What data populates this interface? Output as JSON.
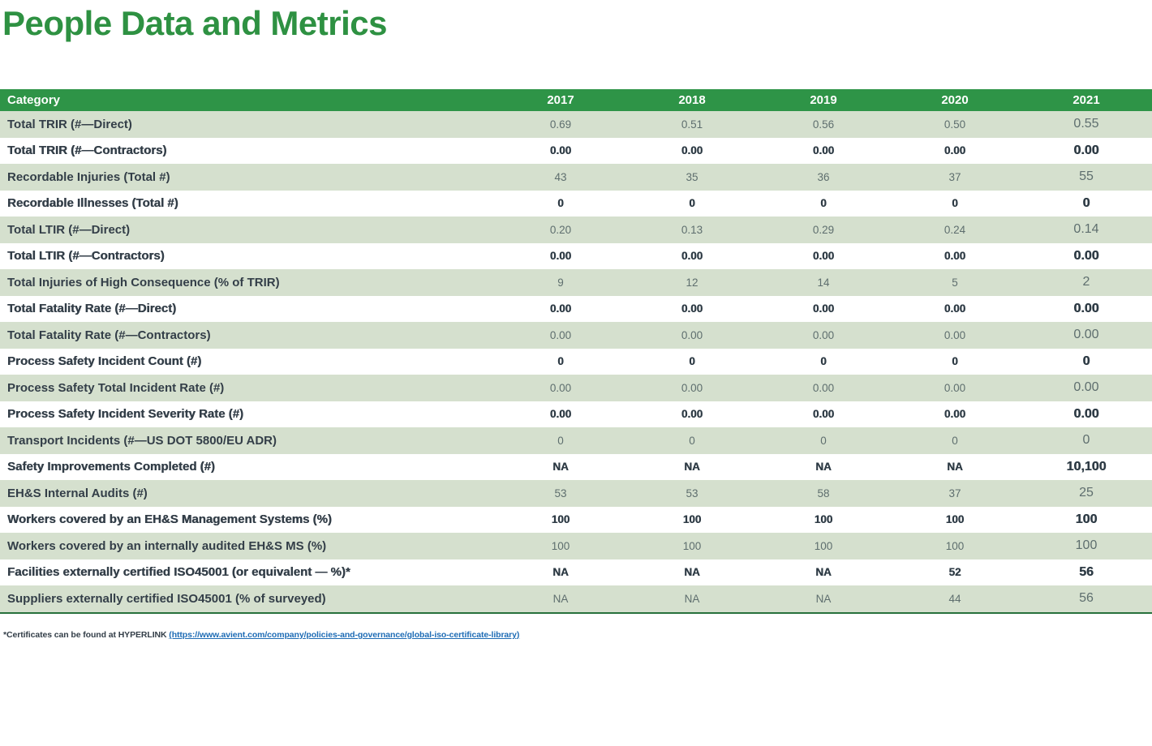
{
  "page": {
    "title": "People Data and Metrics"
  },
  "colors": {
    "brand_green_title": "#2e9142",
    "header_green": "#2e9447",
    "row_green": "#d5e0ce",
    "row_white": "#ffffff",
    "category_text": "#333e48",
    "value_text_white_rows": "#2e3b45",
    "value_text_green_rows": "#5e6e6e",
    "link_blue": "#1e6cb5",
    "table_bottom_border": "#27713c"
  },
  "table": {
    "columns": [
      "Category",
      "2017",
      "2018",
      "2019",
      "2020",
      "2021"
    ],
    "rows": [
      {
        "category": "Total TRIR (#—Direct)",
        "values": [
          "0.69",
          "0.51",
          "0.56",
          "0.50",
          "0.55"
        ]
      },
      {
        "category": "Total TRIR (#—Contractors)",
        "values": [
          "0.00",
          "0.00",
          "0.00",
          "0.00",
          "0.00"
        ]
      },
      {
        "category": "Recordable Injuries (Total #)",
        "values": [
          "43",
          "35",
          "36",
          "37",
          "55"
        ]
      },
      {
        "category": "Recordable Illnesses (Total #)",
        "values": [
          "0",
          "0",
          "0",
          "0",
          "0"
        ]
      },
      {
        "category": "Total LTIR (#—Direct)",
        "values": [
          "0.20",
          "0.13",
          "0.29",
          "0.24",
          "0.14"
        ]
      },
      {
        "category": "Total LTIR (#—Contractors)",
        "values": [
          "0.00",
          "0.00",
          "0.00",
          "0.00",
          "0.00"
        ]
      },
      {
        "category": "Total Injuries of High Consequence (% of TRIR)",
        "values": [
          "9",
          "12",
          "14",
          "5",
          "2"
        ]
      },
      {
        "category": "Total Fatality Rate (#—Direct)",
        "values": [
          "0.00",
          "0.00",
          "0.00",
          "0.00",
          "0.00"
        ]
      },
      {
        "category": "Total Fatality Rate (#—Contractors)",
        "values": [
          "0.00",
          "0.00",
          "0.00",
          "0.00",
          "0.00"
        ]
      },
      {
        "category": "Process Safety Incident Count (#)",
        "values": [
          "0",
          "0",
          "0",
          "0",
          "0"
        ]
      },
      {
        "category": "Process Safety Total Incident Rate (#)",
        "values": [
          "0.00",
          "0.00",
          "0.00",
          "0.00",
          "0.00"
        ]
      },
      {
        "category": "Process Safety Incident Severity Rate (#)",
        "values": [
          "0.00",
          "0.00",
          "0.00",
          "0.00",
          "0.00"
        ]
      },
      {
        "category": "Transport Incidents (#—US DOT 5800/EU ADR)",
        "values": [
          "0",
          "0",
          "0",
          "0",
          "0"
        ]
      },
      {
        "category": "Safety Improvements Completed (#)",
        "values": [
          "NA",
          "NA",
          "NA",
          "NA",
          "10,100"
        ]
      },
      {
        "category": "EH&S Internal Audits (#)",
        "values": [
          "53",
          "53",
          "58",
          "37",
          "25"
        ]
      },
      {
        "category": "Workers covered by an EH&S Management Systems (%)",
        "values": [
          "100",
          "100",
          "100",
          "100",
          "100"
        ]
      },
      {
        "category": "Workers covered by an internally audited EH&S MS (%)",
        "values": [
          "100",
          "100",
          "100",
          "100",
          "100"
        ]
      },
      {
        "category": "Facilities externally certified ISO45001 (or equivalent — %)*",
        "values": [
          "NA",
          "NA",
          "NA",
          "52",
          "56"
        ]
      },
      {
        "category": "Suppliers externally certified ISO45001 (% of surveyed)",
        "values": [
          "NA",
          "NA",
          "NA",
          "44",
          "56"
        ]
      }
    ]
  },
  "footnote": {
    "prefix": "*Certificates can be found at HYPERLINK ",
    "link": "(https://www.avient.com/company/policies-and-governance/global-iso-certificate-library)"
  }
}
